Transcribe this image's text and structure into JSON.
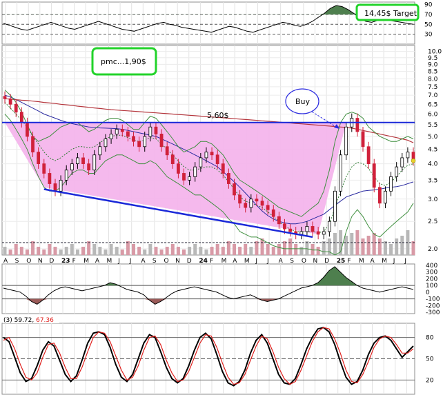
{
  "chart_data": [
    {
      "panel": "upper-indicator",
      "type": "line",
      "y_ticks": [
        "90",
        "70",
        "50",
        "30"
      ],
      "reference_levels": [
        70,
        50,
        30
      ],
      "values": [
        52,
        48,
        44,
        40,
        38,
        42,
        46,
        50,
        54,
        50,
        46,
        42,
        40,
        44,
        48,
        52,
        56,
        52,
        48,
        44,
        40,
        38,
        36,
        40,
        44,
        48,
        52,
        54,
        50,
        48,
        44,
        42,
        40,
        38,
        36,
        34,
        38,
        42,
        46,
        44,
        40,
        36,
        34,
        38,
        42,
        46,
        50,
        54,
        52,
        48,
        46,
        50,
        56,
        64,
        72,
        82,
        88,
        86,
        80,
        72,
        62,
        56,
        54,
        58,
        60,
        58,
        56,
        54,
        52,
        50
      ]
    },
    {
      "panel": "price",
      "type": "candlestick",
      "y_scale": "log",
      "ylim": [
        1.9,
        10.5
      ],
      "y_ticks": [
        "10.0",
        "9.5",
        "9.0",
        "8.5",
        "8.0",
        "7.5",
        "7.0",
        "6.5",
        "6.0",
        "5.5",
        "5.0",
        "4.5",
        "4.0",
        "3.5",
        "3.0",
        "2.5",
        "2.0"
      ],
      "x_ticks": [
        "A",
        "S",
        "O",
        "N",
        "D",
        "23",
        "F",
        "M",
        "A",
        "M",
        "J",
        "J",
        "A",
        "S",
        "O",
        "N",
        "D",
        "24",
        "F",
        "M",
        "A",
        "M",
        "J",
        "J",
        "A",
        "S",
        "O",
        "N",
        "D",
        "25",
        "F",
        "M",
        "A",
        "M",
        "J",
        "J"
      ],
      "close": [
        6.8,
        6.5,
        6.1,
        5.6,
        5.0,
        4.4,
        4.0,
        3.7,
        3.4,
        3.2,
        3.5,
        3.8,
        4.0,
        4.2,
        4.0,
        3.8,
        4.3,
        4.6,
        4.9,
        5.1,
        5.3,
        5.2,
        5.0,
        4.8,
        4.6,
        5.0,
        5.4,
        5.1,
        4.6,
        4.3,
        4.0,
        3.7,
        3.5,
        3.6,
        3.9,
        4.2,
        4.4,
        4.3,
        4.0,
        3.7,
        3.4,
        3.1,
        2.9,
        2.8,
        3.0,
        2.95,
        2.85,
        2.75,
        2.6,
        2.45,
        2.35,
        2.3,
        2.25,
        2.3,
        2.4,
        2.3,
        2.25,
        2.3,
        2.5,
        3.2,
        4.3,
        5.4,
        5.8,
        5.2,
        4.6,
        4.0,
        3.3,
        2.9,
        3.2,
        3.6,
        3.9,
        4.2,
        4.4,
        4.1
      ],
      "volume": [
        0.3,
        0.2,
        0.4,
        0.3,
        0.2,
        0.5,
        0.3,
        0.2,
        0.4,
        0.3,
        0.2,
        0.3,
        0.4,
        0.2,
        0.3,
        0.5,
        0.4,
        0.3,
        0.2,
        0.4,
        0.3,
        0.2,
        0.5,
        0.4,
        0.3,
        0.2,
        0.4,
        0.3,
        0.2,
        0.3,
        0.4,
        0.3,
        0.2,
        0.3,
        0.4,
        0.3,
        0.2,
        0.3,
        0.4,
        0.3,
        0.5,
        0.4,
        0.3,
        0.4,
        0.3,
        0.5,
        0.6,
        0.4,
        0.3,
        0.4,
        0.5,
        0.6,
        0.4,
        0.3,
        0.5,
        0.4,
        0.3,
        0.5,
        0.6,
        0.8,
        0.9,
        0.7,
        0.8,
        0.9,
        0.6,
        0.7,
        0.8,
        0.6,
        0.5,
        0.4,
        0.6,
        0.7,
        0.9,
        0.5
      ],
      "series": [
        {
          "values": [
            6.6,
            6.3,
            6.0,
            5.7,
            5.4,
            5.0,
            4.7,
            4.4,
            4.2,
            4.1,
            4.2,
            4.35,
            4.5,
            4.6,
            4.6,
            4.55,
            4.6,
            4.75,
            4.9,
            5.0,
            5.05,
            5.05,
            4.95,
            4.85,
            4.8,
            4.85,
            4.95,
            4.9,
            4.7,
            4.5,
            4.3,
            4.1,
            3.9,
            3.8,
            3.8,
            3.85,
            3.9,
            3.9,
            3.8,
            3.65,
            3.45,
            3.25,
            3.05,
            2.95,
            2.9,
            2.85,
            2.8,
            2.7,
            2.6,
            2.5,
            2.4,
            2.35,
            2.3,
            2.3,
            2.3,
            2.3,
            2.28,
            2.3,
            2.45,
            2.8,
            3.2,
            3.6,
            3.9,
            4.05,
            4.0,
            3.85,
            3.6,
            3.4,
            3.35,
            3.45,
            3.6,
            3.8,
            3.95,
            4.0
          ]
        },
        {
          "values": [
            7.0,
            6.9,
            6.75,
            6.6,
            6.45,
            6.3,
            6.15,
            6.0,
            5.9,
            5.8,
            5.7,
            5.62,
            5.55,
            5.5,
            5.45,
            5.4,
            5.38,
            5.36,
            5.35,
            5.34,
            5.33,
            5.3,
            5.25,
            5.2,
            5.15,
            5.1,
            5.05,
            5.0,
            4.9,
            4.8,
            4.7,
            4.6,
            4.5,
            4.4,
            4.3,
            4.2,
            4.1,
            4.0,
            3.9,
            3.75,
            3.6,
            3.45,
            3.3,
            3.15,
            3.0,
            2.85,
            2.72,
            2.62,
            2.55,
            2.5,
            2.47,
            2.45,
            2.45,
            2.47,
            2.5,
            2.55,
            2.6,
            2.65,
            2.75,
            2.85,
            2.95,
            3.05,
            3.1,
            3.15,
            3.2,
            3.22,
            3.23,
            3.25,
            3.28,
            3.3,
            3.32,
            3.35,
            3.4,
            3.45
          ]
        },
        {
          "values": [
            6.8,
            6.78,
            6.75,
            6.72,
            6.7,
            6.67,
            6.64,
            6.6,
            6.57,
            6.54,
            6.5,
            6.47,
            6.44,
            6.4,
            6.37,
            6.34,
            6.31,
            6.28,
            6.25,
            6.22,
            6.2,
            6.18,
            6.16,
            6.14,
            6.12,
            6.1,
            6.08,
            6.06,
            6.04,
            6.02,
            6.0,
            5.98,
            5.96,
            5.94,
            5.92,
            5.9,
            5.88,
            5.86,
            5.84,
            5.82,
            5.8,
            5.78,
            5.76,
            5.74,
            5.72,
            5.7,
            5.68,
            5.66,
            5.64,
            5.62,
            5.6,
            5.58,
            5.56,
            5.54,
            5.52,
            5.5,
            5.48,
            5.46,
            5.44,
            5.42,
            5.4,
            5.38,
            5.35,
            5.3,
            5.25,
            5.2,
            5.15,
            5.1,
            5.05,
            5.0,
            4.95,
            4.9,
            4.85,
            4.75
          ]
        },
        {
          "values": [
            7.3,
            7.0,
            6.6,
            6.1,
            5.5,
            5.0,
            4.8,
            4.9,
            5.0,
            5.2,
            5.4,
            5.5,
            5.6,
            5.6,
            5.4,
            5.2,
            5.3,
            5.5,
            5.7,
            5.8,
            5.8,
            5.7,
            5.5,
            5.3,
            5.3,
            5.6,
            5.9,
            5.8,
            5.5,
            5.2,
            4.9,
            4.6,
            4.4,
            4.5,
            4.6,
            4.8,
            4.8,
            4.7,
            4.5,
            4.3,
            4.0,
            3.7,
            3.5,
            3.4,
            3.3,
            3.2,
            3.1,
            3.0,
            2.9,
            2.8,
            2.75,
            2.7,
            2.65,
            2.6,
            2.7,
            2.8,
            2.9,
            3.2,
            3.8,
            4.8,
            5.6,
            6.0,
            6.1,
            6.0,
            5.8,
            5.4,
            5.2,
            5.0,
            4.9,
            4.8,
            4.8,
            4.9,
            5.0,
            4.9
          ]
        },
        {
          "values": [
            6.0,
            5.7,
            5.3,
            4.9,
            4.5,
            4.0,
            3.6,
            3.3,
            3.2,
            3.2,
            3.3,
            3.5,
            3.7,
            3.8,
            3.8,
            3.7,
            3.7,
            3.9,
            4.1,
            4.2,
            4.3,
            4.3,
            4.2,
            4.1,
            4.0,
            4.0,
            4.1,
            4.0,
            3.8,
            3.6,
            3.5,
            3.4,
            3.3,
            3.2,
            3.1,
            3.1,
            3.0,
            2.9,
            2.8,
            2.7,
            2.55,
            2.45,
            2.3,
            2.25,
            2.2,
            2.2,
            2.15,
            2.1,
            2.05,
            2.02,
            2.0,
            2.0,
            2.0,
            2.0,
            2.0,
            1.98,
            1.98,
            1.95,
            1.95,
            1.9,
            1.95,
            2.3,
            2.6,
            2.75,
            2.6,
            2.4,
            2.25,
            2.2,
            2.3,
            2.4,
            2.5,
            2.6,
            2.7,
            2.9
          ]
        }
      ],
      "reference_levels": [
        5.6
      ],
      "annotations": [
        "5,60$",
        "pmc...1,90$",
        "Buy",
        "14,45$ Target"
      ]
    },
    {
      "panel": "middle-indicator",
      "type": "area",
      "y_ticks": [
        "400",
        "300",
        "200",
        "100",
        "0",
        "-100",
        "-200",
        "-300"
      ],
      "reference_levels": [
        100,
        -100
      ],
      "values": [
        60,
        40,
        20,
        0,
        -60,
        -140,
        -180,
        -120,
        -40,
        20,
        60,
        80,
        60,
        40,
        20,
        40,
        60,
        80,
        100,
        140,
        120,
        80,
        40,
        20,
        0,
        -40,
        -120,
        -180,
        -140,
        -80,
        -20,
        20,
        40,
        60,
        80,
        60,
        40,
        20,
        0,
        -40,
        -80,
        -100,
        -80,
        -60,
        -40,
        -80,
        -120,
        -140,
        -120,
        -100,
        -60,
        -20,
        20,
        60,
        80,
        100,
        140,
        220,
        320,
        380,
        300,
        220,
        160,
        100,
        60,
        40,
        20,
        0,
        20,
        40,
        60,
        80,
        60,
        40
      ]
    },
    {
      "panel": "lower-indicator",
      "type": "line",
      "label": "(3) 59.72,",
      "label_value": "67.36",
      "y_ticks": [
        "80",
        "50",
        "20"
      ],
      "reference_levels": [
        80,
        50,
        20
      ],
      "series": [
        {
          "values": [
            80,
            74,
            52,
            30,
            18,
            22,
            40,
            62,
            74,
            68,
            48,
            28,
            18,
            26,
            48,
            72,
            86,
            88,
            84,
            66,
            42,
            24,
            18,
            28,
            50,
            72,
            84,
            80,
            60,
            38,
            22,
            16,
            22,
            40,
            62,
            80,
            86,
            78,
            56,
            32,
            16,
            12,
            18,
            34,
            58,
            76,
            84,
            72,
            50,
            28,
            16,
            14,
            22,
            42,
            64,
            80,
            92,
            94,
            88,
            70,
            46,
            24,
            14,
            18,
            34,
            56,
            72,
            80,
            82,
            76,
            64,
            52,
            60,
            68
          ]
        },
        {
          "values": [
            76,
            80,
            64,
            42,
            24,
            20,
            30,
            52,
            70,
            72,
            58,
            38,
            22,
            22,
            38,
            60,
            80,
            88,
            86,
            74,
            54,
            34,
            20,
            24,
            40,
            62,
            80,
            82,
            70,
            48,
            30,
            18,
            20,
            32,
            52,
            72,
            84,
            82,
            66,
            44,
            24,
            14,
            16,
            28,
            48,
            68,
            82,
            78,
            60,
            38,
            22,
            14,
            18,
            34,
            54,
            74,
            88,
            94,
            92,
            78,
            58,
            34,
            18,
            16,
            28,
            46,
            66,
            78,
            82,
            80,
            70,
            58,
            58,
            64
          ]
        }
      ]
    }
  ]
}
